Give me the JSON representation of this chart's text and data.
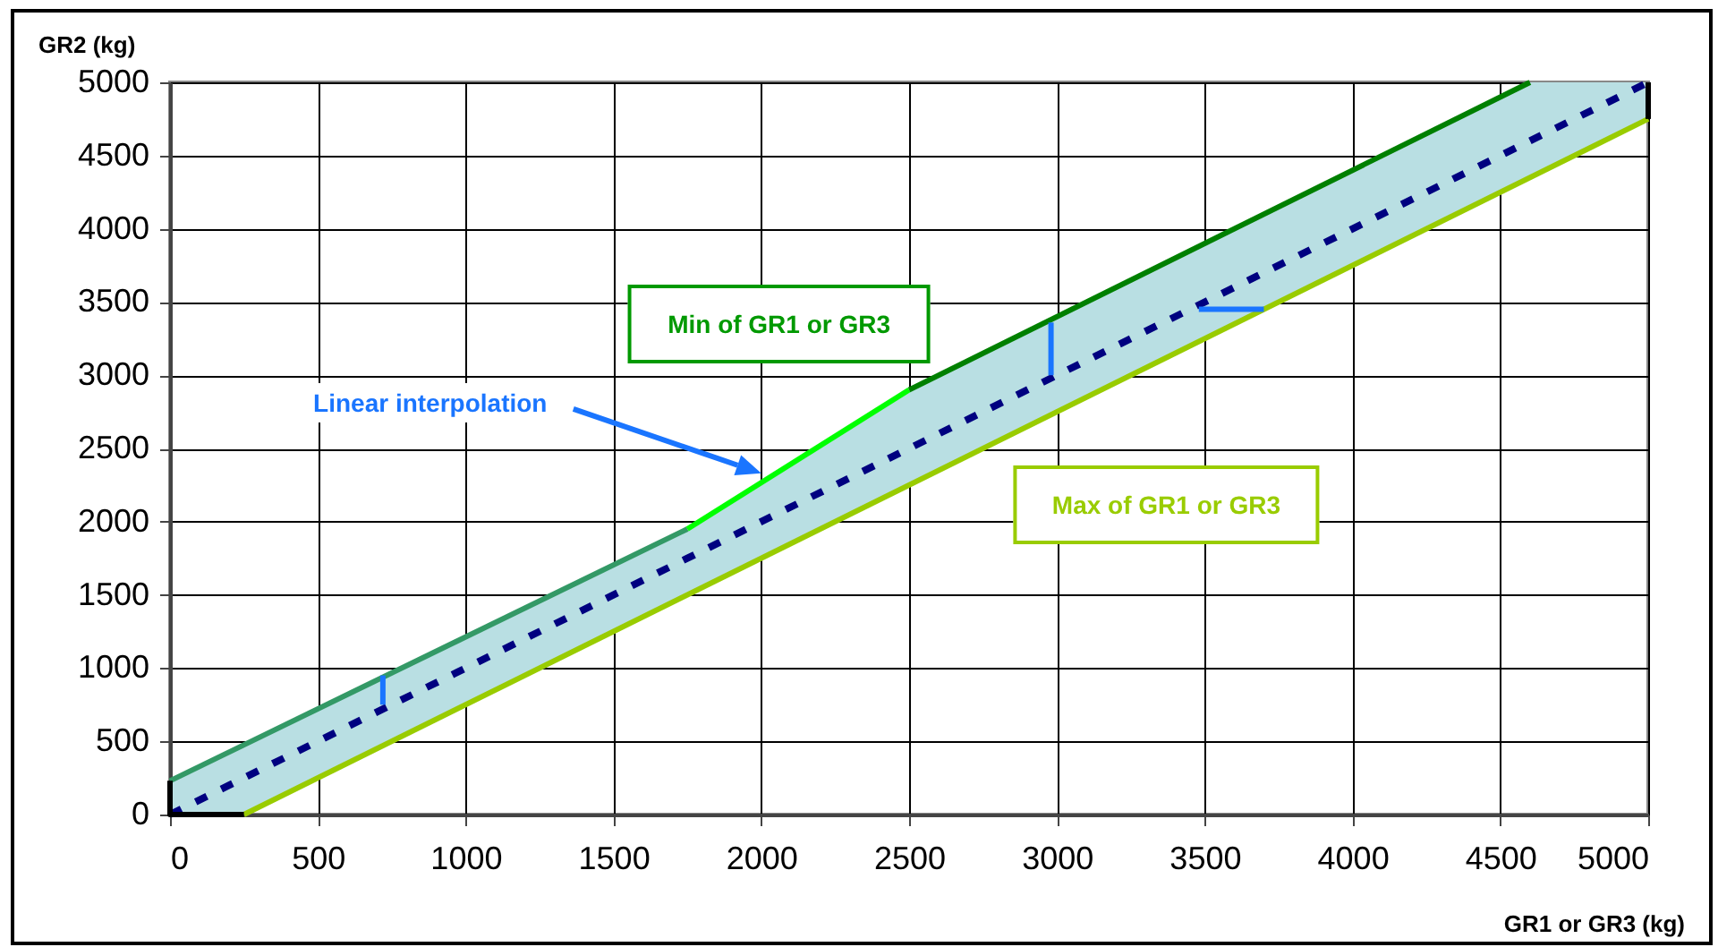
{
  "chart_data": {
    "type": "line",
    "xlabel": "GR1 or GR3 (kg)",
    "ylabel": "GR2 (kg)",
    "xlim": [
      0,
      5000
    ],
    "ylim": [
      0,
      5000
    ],
    "xticks": [
      0,
      500,
      1000,
      1500,
      2000,
      2500,
      3000,
      3500,
      4000,
      4500,
      5000
    ],
    "yticks": [
      0,
      500,
      1000,
      1500,
      2000,
      2500,
      3000,
      3500,
      4000,
      4500,
      5000
    ],
    "grid": true,
    "series": [
      {
        "color": "#000080",
        "line_style": "dashed",
        "x": [
          0,
          250,
          1750,
          2500,
          4600,
          5000
        ],
        "values": [
          0,
          250,
          1750,
          2500,
          4600,
          5000
        ],
        "lower": [
          0,
          0,
          1500,
          2250,
          4350,
          4750
        ],
        "upper": [
          230,
          475,
          1950,
          2900,
          5000,
          5000
        ]
      },
      {
        "color": "#339966",
        "x": [
          0,
          1750
        ],
        "values": [
          230,
          1950
        ]
      },
      {
        "color": "#00ff00",
        "x": [
          1750,
          2500
        ],
        "values": [
          1950,
          2900
        ]
      },
      {
        "color": "#008000",
        "x": [
          2500,
          4600
        ],
        "values": [
          2900,
          5000
        ]
      },
      {
        "color": "#99cc00",
        "x": [
          250,
          5000
        ],
        "values": [
          0,
          4750
        ]
      },
      {
        "color": "#000000",
        "x": [
          0,
          0,
          250
        ],
        "values": [
          230,
          0,
          0
        ]
      },
      {
        "color": "#000000",
        "x": [
          5000,
          5000
        ],
        "values": [
          5000,
          4750
        ]
      },
      {
        "color": "#1a75ff",
        "x": [
          720,
          720
        ],
        "values": [
          750,
          950
        ]
      },
      {
        "color": "#1a75ff",
        "x": [
          2980,
          2980
        ],
        "values": [
          3000,
          3360
        ]
      },
      {
        "color": "#1a75ff",
        "x": [
          3480,
          3700
        ],
        "values": [
          3450,
          3450
        ]
      }
    ],
    "annotations": [
      "Min of GR1 or GR3",
      "Linear interpolation",
      "Max of GR1 or GR3"
    ]
  }
}
